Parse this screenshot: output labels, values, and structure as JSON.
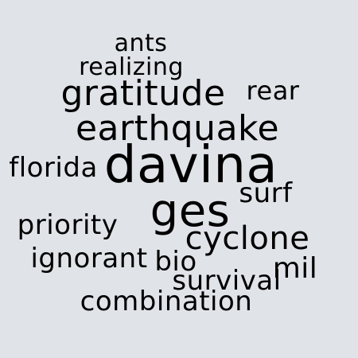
{
  "words": {
    "ants": "ants",
    "realizing": "realizing",
    "gratitude": "gratitude",
    "rear": "rear",
    "earthquake": "earthquake",
    "florida": "florida",
    "davina": "davina",
    "surf": "surf",
    "ges": "ges",
    "priority": "priority",
    "cyclone": "cyclone",
    "ignorant": "ignorant",
    "bio": "bio",
    "mil": "mil",
    "survival": "survival",
    "combination": "combination"
  }
}
